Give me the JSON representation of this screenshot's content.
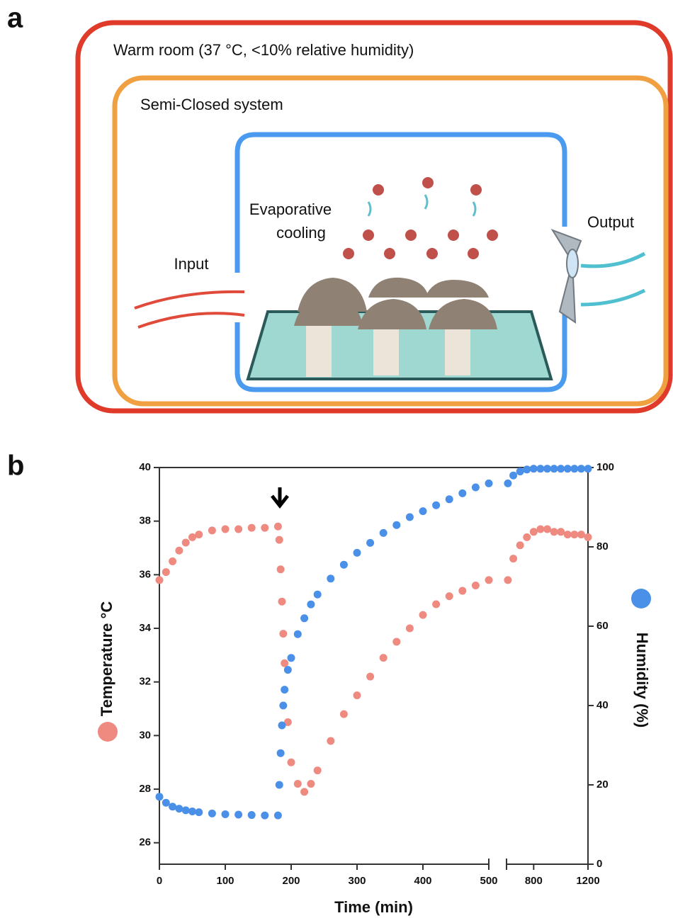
{
  "panel_labels": [
    "a",
    "b"
  ],
  "diagram": {
    "outer_label": "Warm room (37 °C, <10% relative humidity)",
    "middle_label": "Semi-Closed system",
    "process_label": [
      "Evaporative",
      "cooling"
    ],
    "input_label": "Input",
    "output_label": "Output"
  },
  "chart_data": {
    "type": "scatter",
    "x_label": "Time (min)",
    "x": [
      0,
      10,
      20,
      30,
      40,
      50,
      60,
      80,
      100,
      120,
      140,
      160,
      180,
      182,
      184,
      186,
      188,
      190,
      195,
      200,
      210,
      220,
      230,
      240,
      260,
      280,
      300,
      320,
      340,
      360,
      380,
      400,
      420,
      440,
      460,
      480,
      500,
      610,
      650,
      700,
      750,
      800,
      850,
      900,
      950,
      1000,
      1050,
      1100,
      1150,
      1200
    ],
    "xlim_segments": [
      [
        0,
        500
      ],
      [
        600,
        1200
      ]
    ],
    "xticks": [
      0,
      100,
      200,
      300,
      400,
      500,
      800,
      1200
    ],
    "ylim": [
      25.2,
      40
    ],
    "yticks": [
      26,
      28,
      30,
      32,
      34,
      36,
      38,
      40
    ],
    "y2lim": [
      0,
      100
    ],
    "y2ticks": [
      0,
      20,
      40,
      60,
      80,
      100
    ],
    "series": [
      {
        "name": "Temperature °C",
        "color": "#ef8a80",
        "values": [
          35.8,
          36.1,
          36.5,
          36.9,
          37.2,
          37.4,
          37.5,
          37.65,
          37.7,
          37.7,
          37.75,
          37.75,
          37.8,
          37.3,
          36.2,
          35.0,
          33.8,
          32.7,
          30.5,
          29.0,
          28.2,
          27.9,
          28.2,
          28.7,
          29.8,
          30.8,
          31.5,
          32.2,
          32.9,
          33.5,
          34.0,
          34.5,
          34.9,
          35.2,
          35.4,
          35.6,
          35.8,
          35.8,
          36.6,
          37.1,
          37.4,
          37.6,
          37.7,
          37.7,
          37.6,
          37.6,
          37.5,
          37.5,
          37.5,
          37.4
        ]
      },
      {
        "name": "Humidity (%)",
        "color": "#4a90e8",
        "axis": "y2",
        "values": [
          17,
          15.5,
          14.5,
          14,
          13.6,
          13.3,
          13.1,
          12.8,
          12.6,
          12.5,
          12.4,
          12.3,
          12.3,
          20,
          28,
          35,
          40,
          44,
          49,
          52,
          58,
          62,
          65.5,
          68,
          72,
          75.5,
          78.5,
          81,
          83.5,
          85.5,
          87.5,
          89,
          90.5,
          92,
          93.5,
          95,
          96,
          96,
          98,
          99,
          99.5,
          99.7,
          99.7,
          99.7,
          99.7,
          99.7,
          99.7,
          99.7,
          99.7,
          99.7
        ]
      }
    ]
  }
}
